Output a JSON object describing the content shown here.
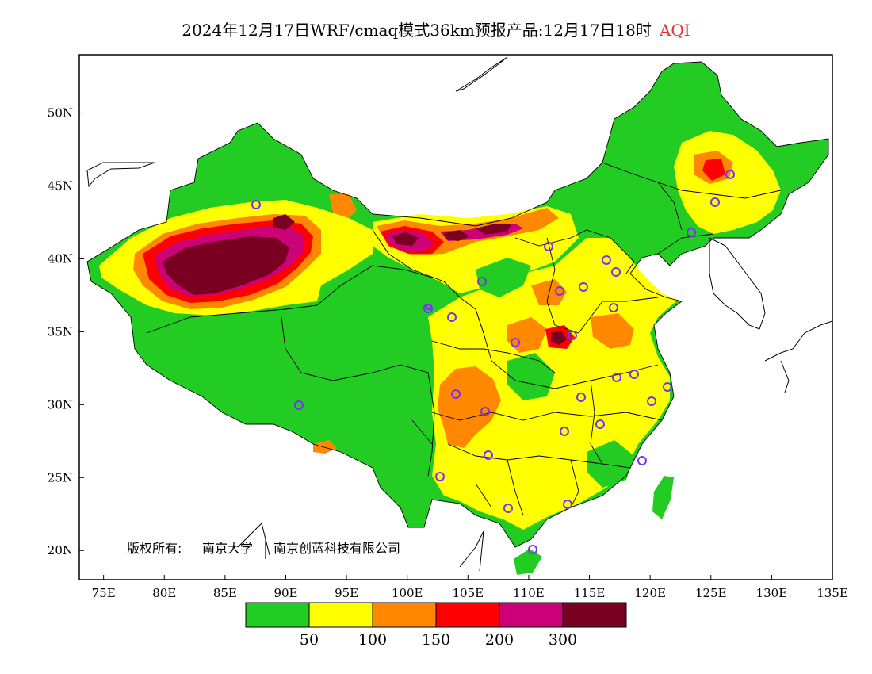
{
  "title": {
    "main": "2024年12月17日WRF/cmaq模式36km预报产品:12月17日18时",
    "variable": "AQI",
    "variable_color": "#e83030"
  },
  "axes": {
    "lon_range": [
      73,
      135
    ],
    "lat_range": [
      18,
      54
    ],
    "x_ticks": [
      "75E",
      "80E",
      "85E",
      "90E",
      "95E",
      "100E",
      "105E",
      "110E",
      "115E",
      "120E",
      "125E",
      "130E",
      "135E"
    ],
    "x_tick_values": [
      75,
      80,
      85,
      90,
      95,
      100,
      105,
      110,
      115,
      120,
      125,
      130,
      135
    ],
    "y_ticks": [
      "20N",
      "25N",
      "30N",
      "35N",
      "40N",
      "45N",
      "50N"
    ],
    "y_tick_values": [
      20,
      25,
      30,
      35,
      40,
      45,
      50
    ]
  },
  "legend": {
    "colors": [
      "#22cc22",
      "#ffff00",
      "#ff8800",
      "#ff0000",
      "#cc0077",
      "#7a0022"
    ],
    "labels": [
      "50",
      "100",
      "150",
      "200",
      "300"
    ]
  },
  "copyright": {
    "prefix": "版权所有:",
    "org1": "南京大学",
    "org2": "南京创蓝科技有限公司"
  },
  "icons": {
    "station": "station-circle-icon"
  },
  "map_layers": {
    "base_color": "#22cc22",
    "yellow": "#ffff00",
    "orange": "#ff8800",
    "red": "#ff0000",
    "magenta": "#cc0077",
    "maroon": "#7a0022",
    "station_color": "#7733ee"
  }
}
